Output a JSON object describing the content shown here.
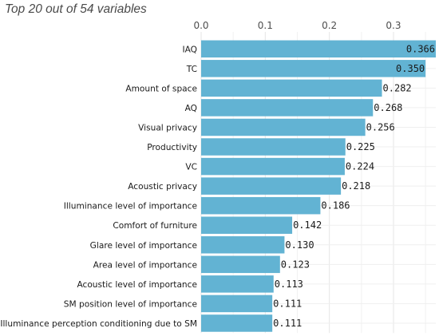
{
  "chart_data": {
    "type": "bar",
    "orientation": "horizontal",
    "title": "Top 20 out of 54 variables",
    "xlabel": "",
    "ylabel": "",
    "xlim": [
      0,
      0.366
    ],
    "xticks": [
      "0.0",
      "0.1",
      "0.2",
      "0.3"
    ],
    "xtick_axis_position": "top",
    "grid": true,
    "categories": [
      "IAQ",
      "TC",
      "Amount of space",
      "AQ",
      "Visual privacy",
      "Productivity",
      "VC",
      "Acoustic privacy",
      "Illuminance level of importance",
      "Comfort of furniture",
      "Glare level of importance",
      "Area level of importance",
      "Acoustic level of importance",
      "SM position level of importance",
      "Illuminance perception conditioning due to SM"
    ],
    "values": [
      0.366,
      0.35,
      0.282,
      0.268,
      0.256,
      0.225,
      0.224,
      0.218,
      0.186,
      0.142,
      0.13,
      0.123,
      0.113,
      0.111,
      0.111
    ],
    "value_labels": [
      "0.366",
      "0.350",
      "0.282",
      "0.268",
      "0.256",
      "0.225",
      "0.224",
      "0.218",
      "0.186",
      "0.142",
      "0.130",
      "0.123",
      "0.113",
      "0.111",
      "0.111"
    ],
    "bar_color": "#62b3d3",
    "grid_color": "#e6e6e6"
  }
}
